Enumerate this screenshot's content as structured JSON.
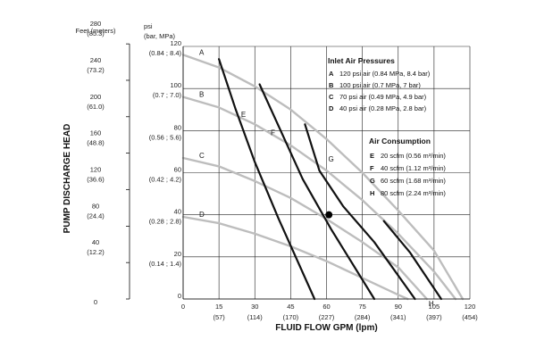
{
  "chart_data": {
    "type": "line",
    "title": "",
    "xlabel": "FLUID FLOW GPM (lpm)",
    "ylabel": "PUMP DISCHARGE HEAD",
    "xlim": [
      0,
      120
    ],
    "ylim": [
      0,
      120
    ],
    "x_ticks": [
      {
        "value": 0,
        "label": "0",
        "sub": ""
      },
      {
        "value": 15,
        "label": "15",
        "sub": "(57)"
      },
      {
        "value": 30,
        "label": "30",
        "sub": "(114)"
      },
      {
        "value": 45,
        "label": "45",
        "sub": "(170)"
      },
      {
        "value": 60,
        "label": "60",
        "sub": "(227)"
      },
      {
        "value": 75,
        "label": "75",
        "sub": "(284)"
      },
      {
        "value": 90,
        "label": "90",
        "sub": "(341)"
      },
      {
        "value": 105,
        "label": "105",
        "sub": "(397)"
      },
      {
        "value": 120,
        "label": "120",
        "sub": "(454)"
      }
    ],
    "psi_axis": {
      "title_line1": "psi",
      "title_line2": "(bar, MPa)",
      "ticks": [
        {
          "value": 0,
          "label": "0",
          "sub": ""
        },
        {
          "value": 20,
          "label": "20",
          "sub": "(0.14 ; 1.4)"
        },
        {
          "value": 40,
          "label": "40",
          "sub": "(0.28 ; 2.8)"
        },
        {
          "value": 60,
          "label": "60",
          "sub": "(0.42 ; 4.2)"
        },
        {
          "value": 80,
          "label": "80",
          "sub": "(0.56 ; 5.6)"
        },
        {
          "value": 100,
          "label": "100",
          "sub": "(0.7 ; 7.0)"
        },
        {
          "value": 120,
          "label": "120",
          "sub": "(0.84 ; 8.4)"
        }
      ]
    },
    "feet_axis": {
      "title": "Feet (meters)",
      "ticks": [
        {
          "psi": 0,
          "label": "0",
          "sub": ""
        },
        {
          "psi": 17.3,
          "label": "40",
          "sub": "(12.2)"
        },
        {
          "psi": 34.6,
          "label": "80",
          "sub": "(24.4)"
        },
        {
          "psi": 52.0,
          "label": "120",
          "sub": "(36.6)"
        },
        {
          "psi": 69.3,
          "label": "160",
          "sub": "(48.8)"
        },
        {
          "psi": 86.6,
          "label": "200",
          "sub": "(61.0)"
        },
        {
          "psi": 103.9,
          "label": "240",
          "sub": "(73.2)"
        },
        {
          "psi": 121.2,
          "label": "280",
          "sub": "(85.3)"
        }
      ]
    },
    "pressure_curves": [
      {
        "label": "A",
        "points": [
          [
            0,
            116
          ],
          [
            15,
            110
          ],
          [
            30,
            101
          ],
          [
            45,
            90
          ],
          [
            60,
            76
          ],
          [
            75,
            60
          ],
          [
            90,
            42
          ],
          [
            105,
            23
          ],
          [
            117,
            0
          ]
        ]
      },
      {
        "label": "B",
        "points": [
          [
            0,
            96
          ],
          [
            15,
            91
          ],
          [
            30,
            83
          ],
          [
            45,
            73
          ],
          [
            60,
            61
          ],
          [
            75,
            47
          ],
          [
            90,
            31
          ],
          [
            105,
            13
          ],
          [
            114,
            0
          ]
        ]
      },
      {
        "label": "C",
        "points": [
          [
            0,
            67
          ],
          [
            15,
            63
          ],
          [
            30,
            56
          ],
          [
            45,
            48
          ],
          [
            60,
            38
          ],
          [
            75,
            27
          ],
          [
            90,
            15
          ],
          [
            102,
            0
          ]
        ]
      },
      {
        "label": "D",
        "points": [
          [
            0,
            39
          ],
          [
            15,
            36
          ],
          [
            30,
            31
          ],
          [
            45,
            25
          ],
          [
            60,
            18
          ],
          [
            75,
            10
          ],
          [
            90,
            2
          ],
          [
            94,
            0
          ]
        ]
      }
    ],
    "air_curves": [
      {
        "label": "E",
        "points": [
          [
            15,
            114
          ],
          [
            22,
            90
          ],
          [
            30,
            65
          ],
          [
            40,
            38
          ],
          [
            55,
            0
          ]
        ]
      },
      {
        "label": "F",
        "points": [
          [
            32,
            102
          ],
          [
            40,
            82
          ],
          [
            50,
            57
          ],
          [
            62,
            33
          ],
          [
            80,
            0
          ]
        ]
      },
      {
        "label": "G",
        "points": [
          [
            51,
            83
          ],
          [
            57,
            61
          ],
          [
            67,
            44
          ],
          [
            80,
            27
          ],
          [
            97,
            0
          ]
        ]
      },
      {
        "label": "H",
        "points": [
          [
            84,
            37
          ],
          [
            95,
            22
          ],
          [
            108,
            0
          ]
        ]
      }
    ],
    "operating_point": {
      "x": 61,
      "y": 40
    },
    "legend": {
      "pressures_title": "Inlet Air Pressures",
      "pressures": [
        {
          "letter": "A",
          "text": "120 psi air (0.84 MPa, 8.4 bar)"
        },
        {
          "letter": "B",
          "text": "100 psi air (0.7 MPa, 7 bar)"
        },
        {
          "letter": "C",
          "text": "70 psi air (0.49 MPa, 4.9 bar)"
        },
        {
          "letter": "D",
          "text": "40 psi air (0.28 MPa, 2.8 bar)"
        }
      ],
      "consumption_title": "Air Consumption",
      "consumption": [
        {
          "letter": "E",
          "text": "20 scfm (0.56 m³/min)"
        },
        {
          "letter": "F",
          "text": "40 scfm (1.12 m³/min)"
        },
        {
          "letter": "G",
          "text": "60 scfm (1.68 m³/min)"
        },
        {
          "letter": "H",
          "text": "80 scfm (2.24 m³/min)"
        }
      ]
    },
    "colors": {
      "pressure": "#bdbdbd",
      "air": "#111111",
      "grid": "#222222"
    }
  }
}
